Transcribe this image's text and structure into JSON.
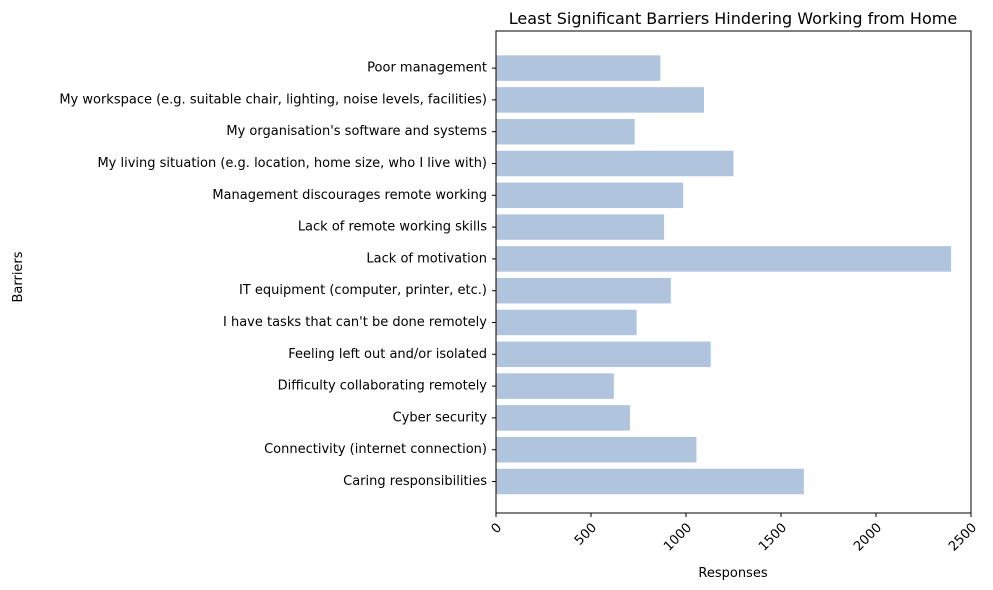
{
  "chart_data": {
    "type": "bar",
    "orientation": "horizontal",
    "title": "Least Significant Barriers Hindering Working from Home",
    "xlabel": "Responses",
    "ylabel": "Barriers",
    "xlim": [
      0,
      2500
    ],
    "xticks": [
      0,
      500,
      1000,
      1500,
      2000,
      2500
    ],
    "grid": false,
    "bar_color": "#b0c4de",
    "categories": [
      "Caring responsibilities",
      "Connectivity (internet connection)",
      "Cyber security",
      "Difficulty collaborating remotely",
      "Feeling left out and/or isolated",
      "I have tasks that can't be done remotely",
      "IT equipment (computer, printer, etc.)",
      "Lack of motivation",
      "Lack of remote working skills",
      "Management discourages remote working",
      "My living situation (e.g. location, home size, who I live with)",
      "My organisation's software and systems",
      "My workspace (e.g. suitable chair, lighting, noise levels, facilities)",
      "Poor management"
    ],
    "values": [
      1620,
      1055,
      705,
      620,
      1130,
      740,
      920,
      2395,
      885,
      985,
      1250,
      730,
      1095,
      865
    ]
  }
}
